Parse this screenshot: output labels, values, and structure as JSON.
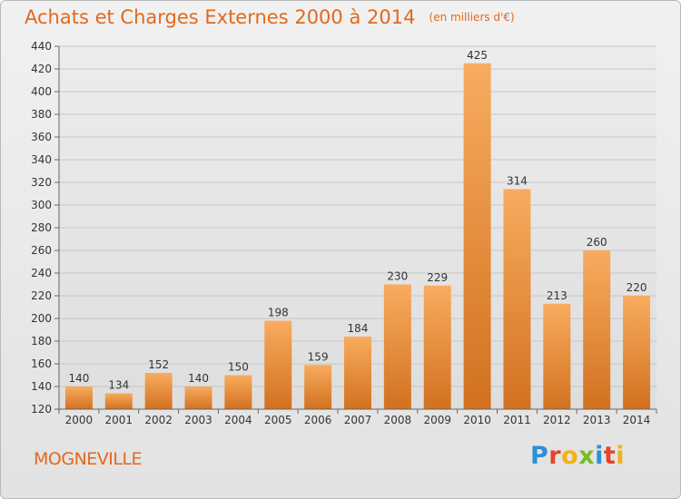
{
  "header": {
    "title": "Achats et Charges Externes 2000 à 2014",
    "unit": "(en milliers d'€)"
  },
  "footer": {
    "commune": "MOGNEVILLE",
    "logo_text": "Proxiti"
  },
  "colors": {
    "accent": "#e2691b",
    "bar_light": "#f7a75a",
    "bar_dark": "#d8731f"
  },
  "chart_data": {
    "type": "bar",
    "title": "Achats et Charges Externes 2000 à 2014",
    "subtitle": "(en milliers d'€)",
    "xlabel": "",
    "ylabel": "",
    "categories": [
      "2000",
      "2001",
      "2002",
      "2003",
      "2004",
      "2005",
      "2006",
      "2007",
      "2008",
      "2009",
      "2010",
      "2011",
      "2012",
      "2013",
      "2014"
    ],
    "values": [
      140,
      134,
      152,
      140,
      150,
      198,
      159,
      184,
      230,
      229,
      425,
      314,
      213,
      260,
      220
    ],
    "ylim": [
      120,
      440
    ],
    "yticks": [
      120,
      140,
      160,
      180,
      200,
      220,
      240,
      260,
      280,
      300,
      320,
      340,
      360,
      380,
      400,
      420,
      440
    ],
    "grid": true,
    "data_labels": true
  }
}
